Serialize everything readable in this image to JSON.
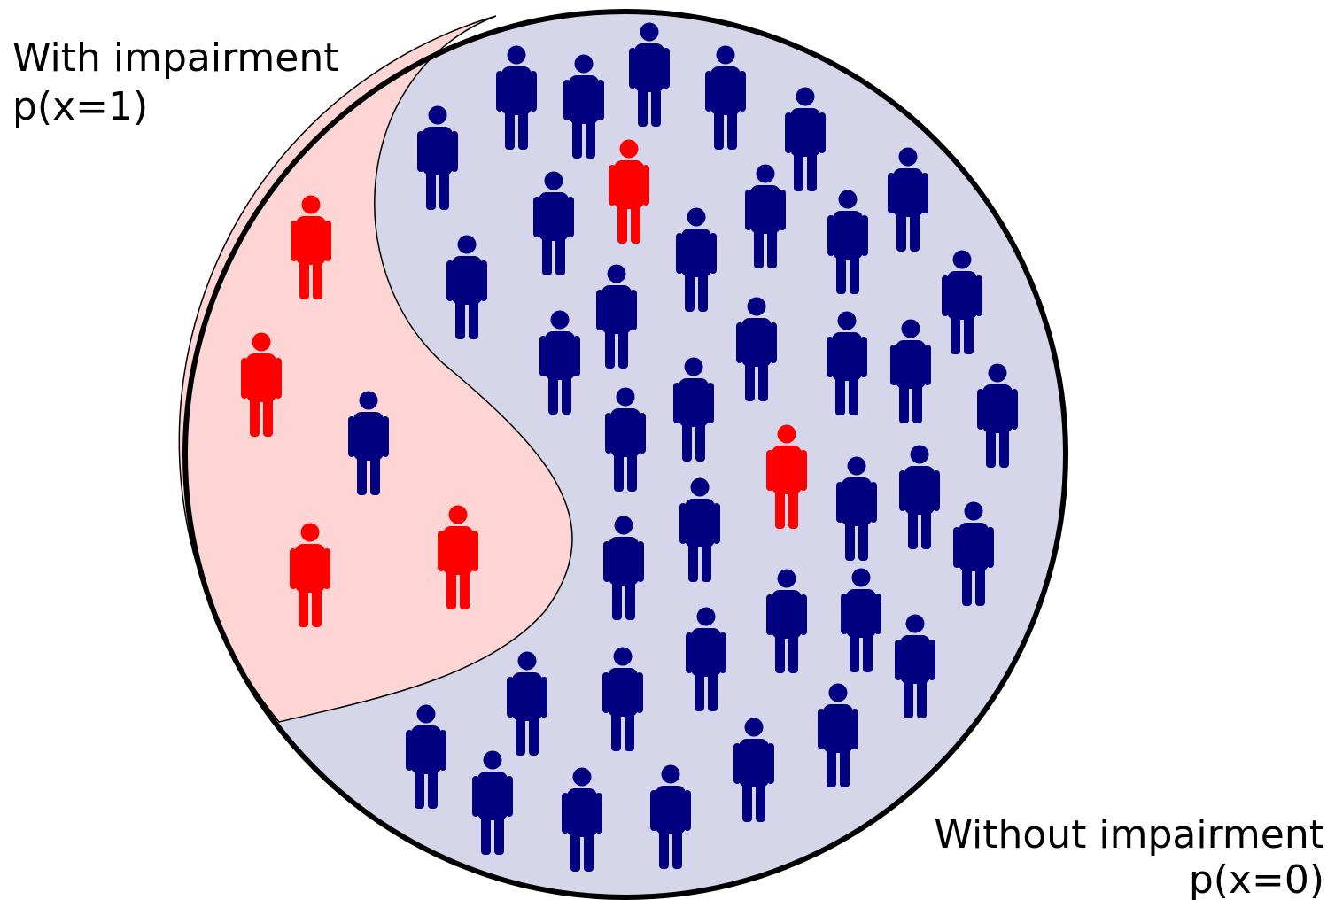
{
  "labels": {
    "impaired": {
      "title": "With impairment",
      "probability": "p(x=1)"
    },
    "unimpaired": {
      "title": "Without impairment",
      "probability": "p(x=0)"
    }
  }
}
